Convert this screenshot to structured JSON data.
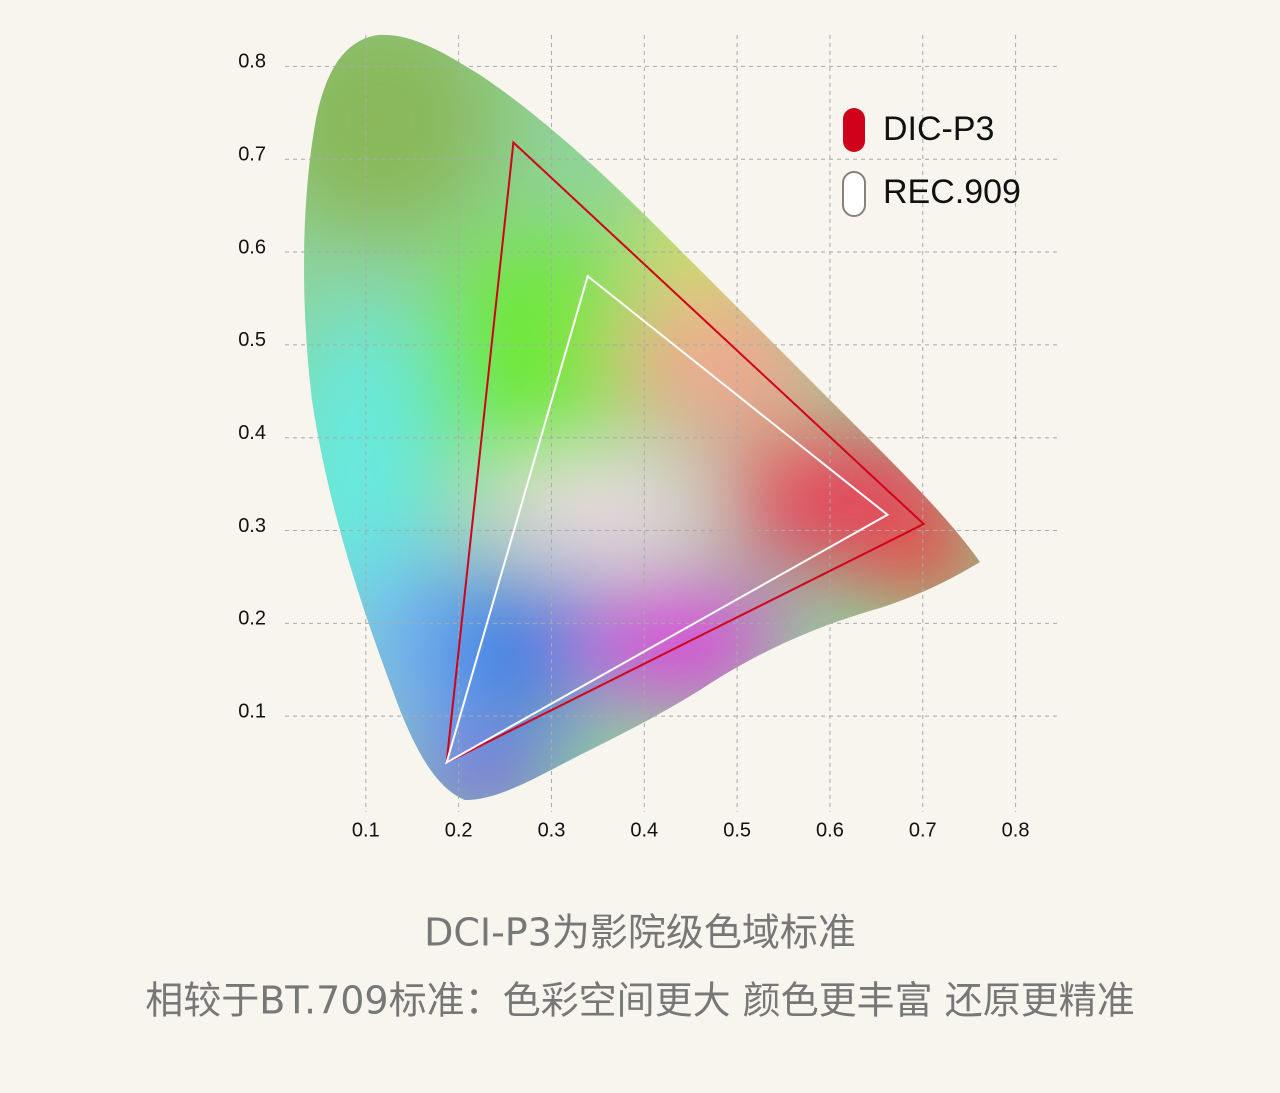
{
  "chart_data": {
    "type": "polygon",
    "xlim": [
      0,
      0.85
    ],
    "ylim": [
      0,
      0.85
    ],
    "xticks": [
      0.1,
      0.2,
      0.3,
      0.4,
      0.5,
      0.6,
      0.7,
      0.8
    ],
    "yticks": [
      0.1,
      0.2,
      0.3,
      0.4,
      0.5,
      0.6,
      0.7,
      0.8
    ],
    "grid": true,
    "legend": "upper right",
    "series": [
      {
        "name": "DIC-P3",
        "color": "#d0021b",
        "x": [
          0.259,
          0.701,
          0.187
        ],
        "y": [
          0.718,
          0.307,
          0.05
        ]
      },
      {
        "name": "REC.909",
        "color": "#ffffff",
        "x": [
          0.339,
          0.662,
          0.187
        ],
        "y": [
          0.574,
          0.317,
          0.05
        ]
      }
    ]
  },
  "captions": [
    "DCI-P3为影院级色域标准",
    "相较于BT.709标准：色彩空间更大 颜色更丰富 还原更精准"
  ]
}
